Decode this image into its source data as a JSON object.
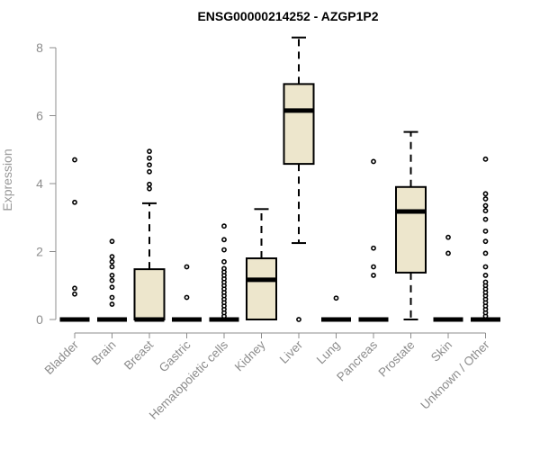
{
  "chart_data": {
    "type": "box",
    "title": "ENSG00000214252 - AZGP1P2",
    "ylabel": "Expression",
    "xlabel": "",
    "ylim": [
      0,
      8.3
    ],
    "yticks": [
      0,
      2,
      4,
      6,
      8
    ],
    "colors": {
      "box_fill": "#ede6cc",
      "stroke": "#000000",
      "axis": "#8c8c8c"
    },
    "categories": [
      "Bladder",
      "Brain",
      "Breast",
      "Gastric",
      "Hematopoietic cells",
      "Kidney",
      "Liver",
      "Lung",
      "Pancreas",
      "Prostate",
      "Skin",
      "Unknown / Other"
    ],
    "boxes": [
      {
        "min": 0,
        "q1": 0,
        "median": 0,
        "q3": 0,
        "max": 0,
        "outliers": [
          0.75,
          0.92,
          3.45,
          4.7
        ]
      },
      {
        "min": 0,
        "q1": 0,
        "median": 0,
        "q3": 0,
        "max": 0,
        "outliers": [
          0.45,
          0.65,
          0.95,
          1.15,
          1.3,
          1.55,
          1.7,
          1.85,
          2.3
        ]
      },
      {
        "min": 0,
        "q1": 0,
        "median": 0,
        "q3": 1.48,
        "max": 3.42,
        "outliers": [
          3.85,
          3.98,
          4.35,
          4.55,
          4.75,
          4.95
        ]
      },
      {
        "min": 0,
        "q1": 0,
        "median": 0,
        "q3": 0,
        "max": 0,
        "outliers": [
          0.65,
          1.55
        ]
      },
      {
        "min": 0,
        "q1": 0,
        "median": 0,
        "q3": 0,
        "max": 0,
        "outliers": [
          0.1,
          0.2,
          0.3,
          0.4,
          0.5,
          0.6,
          0.7,
          0.8,
          0.9,
          1.0,
          1.1,
          1.2,
          1.3,
          1.4,
          1.5,
          1.7,
          2.05,
          2.35,
          2.75
        ]
      },
      {
        "min": 0,
        "q1": 0,
        "median": 1.17,
        "q3": 1.8,
        "max": 3.25,
        "outliers": []
      },
      {
        "min": 2.25,
        "q1": 4.58,
        "median": 6.15,
        "q3": 6.93,
        "max": 8.3,
        "outliers": [
          0
        ]
      },
      {
        "min": 0,
        "q1": 0,
        "median": 0,
        "q3": 0,
        "max": 0,
        "outliers": [
          0.63
        ]
      },
      {
        "min": 0,
        "q1": 0,
        "median": 0,
        "q3": 0,
        "max": 0,
        "outliers": [
          1.3,
          1.55,
          2.1,
          4.65
        ]
      },
      {
        "min": 0,
        "q1": 1.38,
        "median": 3.18,
        "q3": 3.9,
        "max": 5.52,
        "outliers": []
      },
      {
        "min": 0,
        "q1": 0,
        "median": 0,
        "q3": 0,
        "max": 0,
        "outliers": [
          1.95,
          2.42
        ]
      },
      {
        "min": 0,
        "q1": 0,
        "median": 0,
        "q3": 0,
        "max": 0,
        "outliers": [
          0.1,
          0.2,
          0.3,
          0.4,
          0.5,
          0.6,
          0.7,
          0.8,
          0.9,
          1.0,
          1.1,
          1.3,
          1.55,
          1.95,
          2.3,
          2.6,
          2.95,
          3.2,
          3.35,
          3.55,
          3.7,
          4.72
        ]
      }
    ]
  }
}
